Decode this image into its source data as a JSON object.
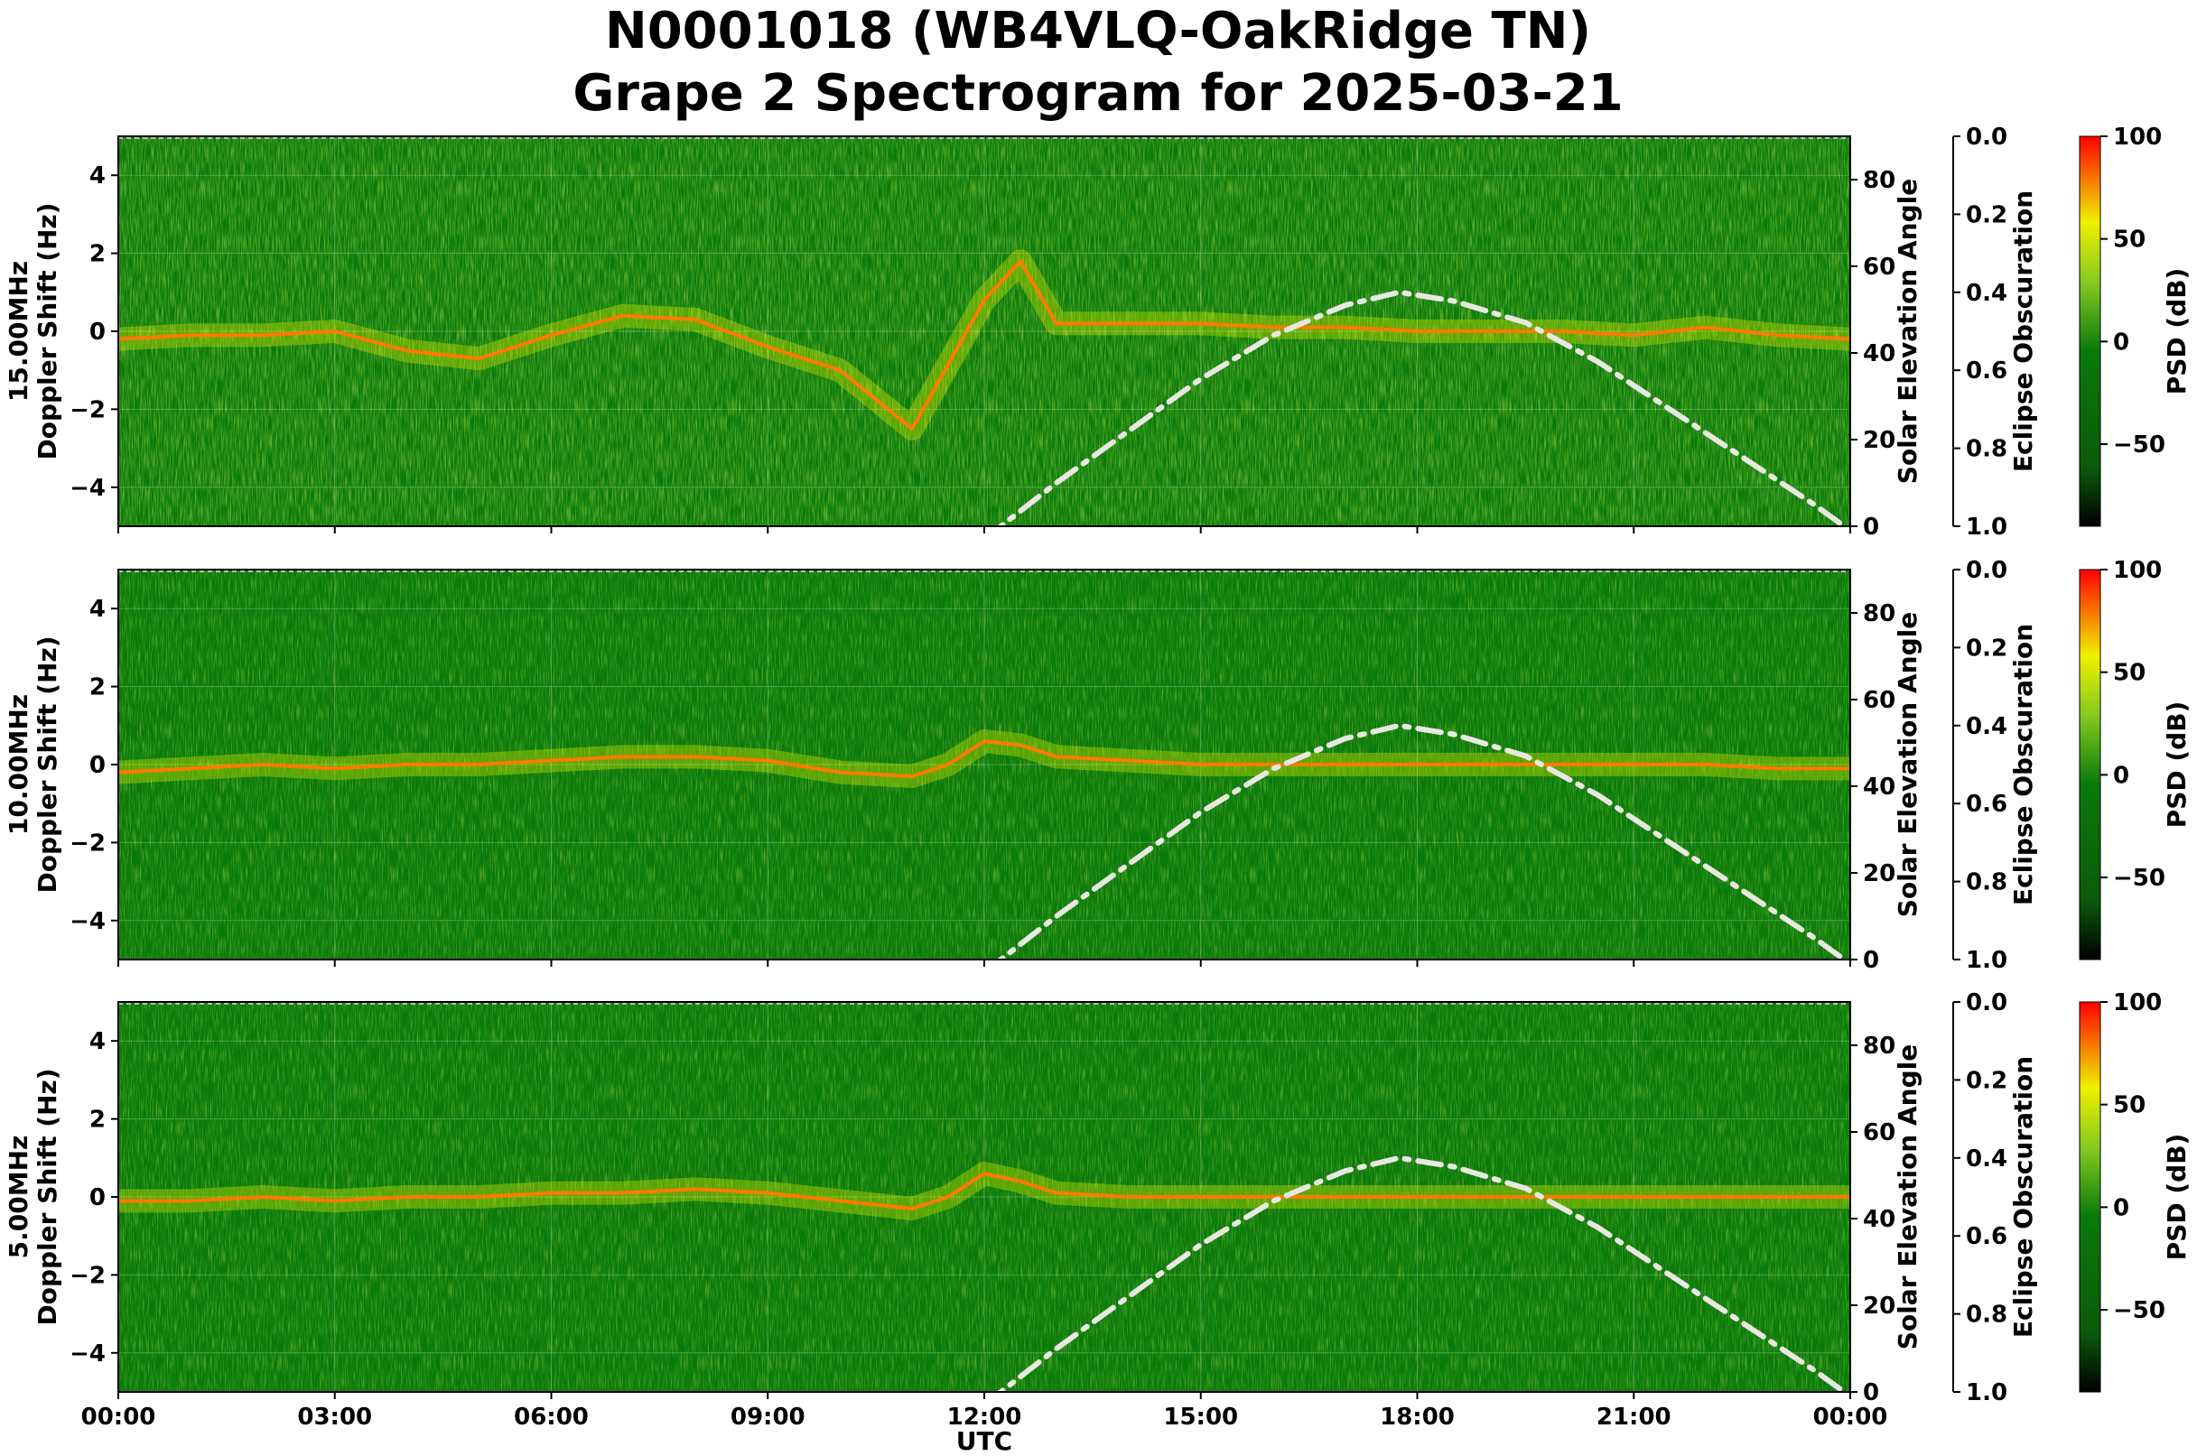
{
  "title_line1": "N0001018 (WB4VLQ-OakRidge TN)",
  "title_line2": "Grape 2 Spectrogram for 2025-03-21",
  "colors": {
    "spectrogram_background": "#0a7a0a",
    "solar_curve": "#e8e8e0",
    "colormap": [
      "#000000",
      "#0a5a0a",
      "#0a7a0a",
      "#80c820",
      "#f0f000",
      "#ff0000"
    ]
  },
  "chart_data": [
    {
      "type": "heatmap",
      "band": "15.00MHz",
      "ylabel": "Doppler Shift (Hz)",
      "ylim": [
        -5,
        5
      ],
      "yticks": [
        "4",
        "2",
        "0",
        "−2",
        "−4"
      ],
      "xlabel": "",
      "xlim_hours": [
        0,
        24
      ],
      "xticks": [
        "00:00",
        "03:00",
        "06:00",
        "09:00",
        "12:00",
        "15:00",
        "18:00",
        "21:00",
        "00:00"
      ],
      "secondary_y": {
        "label": "Solar Elevation Angle",
        "ylim": [
          0,
          90
        ],
        "ticks": [
          "80",
          "60",
          "40",
          "20",
          "0"
        ]
      },
      "tertiary_y": {
        "label": "Eclipse Obscuration",
        "ylim": [
          0.0,
          1.0
        ],
        "ticks": [
          "0.0",
          "0.2",
          "0.4",
          "0.6",
          "0.8",
          "1.0"
        ]
      },
      "colorbar": {
        "label": "PSD (dB)",
        "range": [
          -90,
          100
        ],
        "ticks": [
          "100",
          "50",
          "0",
          "−50"
        ]
      },
      "solar_elevation": {
        "x": [
          12.0,
          13.0,
          14.0,
          15.0,
          16.0,
          17.0,
          17.75,
          18.5,
          19.5,
          20.5,
          21.5,
          22.5,
          23.5,
          24.0
        ],
        "y": [
          -3,
          10,
          22,
          34,
          44,
          51,
          54,
          52,
          47,
          38,
          27,
          16,
          5,
          -1
        ]
      },
      "doppler_trace": {
        "x": [
          0,
          1,
          2,
          3,
          4,
          5,
          6,
          7,
          8,
          9,
          10,
          11,
          12,
          12.5,
          13,
          14,
          15,
          16,
          17,
          18,
          19,
          20,
          21,
          22,
          23,
          24
        ],
        "y": [
          -0.2,
          -0.1,
          -0.1,
          0.0,
          -0.5,
          -0.7,
          -0.1,
          0.4,
          0.3,
          -0.4,
          -1.0,
          -2.5,
          0.8,
          1.8,
          0.2,
          0.2,
          0.2,
          0.1,
          0.1,
          0.0,
          0.0,
          0.0,
          -0.1,
          0.1,
          -0.1,
          -0.2
        ]
      }
    },
    {
      "type": "heatmap",
      "band": "10.00MHz",
      "ylabel": "Doppler Shift (Hz)",
      "ylim": [
        -5,
        5
      ],
      "yticks": [
        "4",
        "2",
        "0",
        "−2",
        "−4"
      ],
      "xlabel": "",
      "xlim_hours": [
        0,
        24
      ],
      "xticks": [
        "00:00",
        "03:00",
        "06:00",
        "09:00",
        "12:00",
        "15:00",
        "18:00",
        "21:00",
        "00:00"
      ],
      "secondary_y": {
        "label": "Solar Elevation Angle",
        "ylim": [
          0,
          90
        ],
        "ticks": [
          "80",
          "60",
          "40",
          "20",
          "0"
        ]
      },
      "tertiary_y": {
        "label": "Eclipse Obscuration",
        "ylim": [
          0.0,
          1.0
        ],
        "ticks": [
          "0.0",
          "0.2",
          "0.4",
          "0.6",
          "0.8",
          "1.0"
        ]
      },
      "colorbar": {
        "label": "PSD (dB)",
        "range": [
          -90,
          100
        ],
        "ticks": [
          "100",
          "50",
          "0",
          "−50"
        ]
      },
      "solar_elevation": {
        "x": [
          12.0,
          13.0,
          14.0,
          15.0,
          16.0,
          17.0,
          17.75,
          18.5,
          19.5,
          20.5,
          21.5,
          22.5,
          23.5,
          24.0
        ],
        "y": [
          -3,
          10,
          22,
          34,
          44,
          51,
          54,
          52,
          47,
          38,
          27,
          16,
          5,
          -1
        ]
      },
      "doppler_trace": {
        "x": [
          0,
          1,
          2,
          3,
          4,
          5,
          6,
          7,
          8,
          9,
          10,
          11,
          11.5,
          12,
          12.5,
          13,
          14,
          15,
          16,
          17,
          18,
          19,
          20,
          21,
          22,
          23,
          24
        ],
        "y": [
          -0.2,
          -0.1,
          0.0,
          -0.1,
          0.0,
          0.0,
          0.1,
          0.2,
          0.2,
          0.1,
          -0.2,
          -0.3,
          0.0,
          0.6,
          0.5,
          0.2,
          0.1,
          0.0,
          0.0,
          0.0,
          0.0,
          0.0,
          0.0,
          0.0,
          0.0,
          -0.1,
          -0.1
        ]
      }
    },
    {
      "type": "heatmap",
      "band": "5.00MHz",
      "ylabel": "Doppler Shift (Hz)",
      "ylim": [
        -5,
        5
      ],
      "yticks": [
        "4",
        "2",
        "0",
        "−2",
        "−4"
      ],
      "xlabel": "UTC",
      "xlim_hours": [
        0,
        24
      ],
      "xticks": [
        "00:00",
        "03:00",
        "06:00",
        "09:00",
        "12:00",
        "15:00",
        "18:00",
        "21:00",
        "00:00"
      ],
      "secondary_y": {
        "label": "Solar Elevation Angle",
        "ylim": [
          0,
          90
        ],
        "ticks": [
          "80",
          "60",
          "40",
          "20",
          "0"
        ]
      },
      "tertiary_y": {
        "label": "Eclipse Obscuration",
        "ylim": [
          0.0,
          1.0
        ],
        "ticks": [
          "0.0",
          "0.2",
          "0.4",
          "0.6",
          "0.8",
          "1.0"
        ]
      },
      "colorbar": {
        "label": "PSD (dB)",
        "range": [
          -90,
          100
        ],
        "ticks": [
          "100",
          "50",
          "0",
          "−50"
        ]
      },
      "solar_elevation": {
        "x": [
          12.0,
          13.0,
          14.0,
          15.0,
          16.0,
          17.0,
          17.75,
          18.5,
          19.5,
          20.5,
          21.5,
          22.5,
          23.5,
          24.0
        ],
        "y": [
          -3,
          10,
          22,
          34,
          44,
          51,
          54,
          52,
          47,
          38,
          27,
          16,
          5,
          -1
        ]
      },
      "doppler_trace": {
        "x": [
          0,
          1,
          2,
          3,
          4,
          5,
          6,
          7,
          8,
          9,
          10,
          11,
          11.5,
          12,
          12.5,
          13,
          14,
          15,
          16,
          17,
          18,
          19,
          20,
          21,
          22,
          23,
          24
        ],
        "y": [
          -0.1,
          -0.1,
          0.0,
          -0.1,
          0.0,
          0.0,
          0.1,
          0.1,
          0.2,
          0.1,
          -0.1,
          -0.3,
          0.0,
          0.6,
          0.4,
          0.1,
          0.0,
          0.0,
          0.0,
          0.0,
          0.0,
          0.0,
          0.0,
          0.0,
          0.0,
          0.0,
          0.0
        ]
      }
    }
  ]
}
